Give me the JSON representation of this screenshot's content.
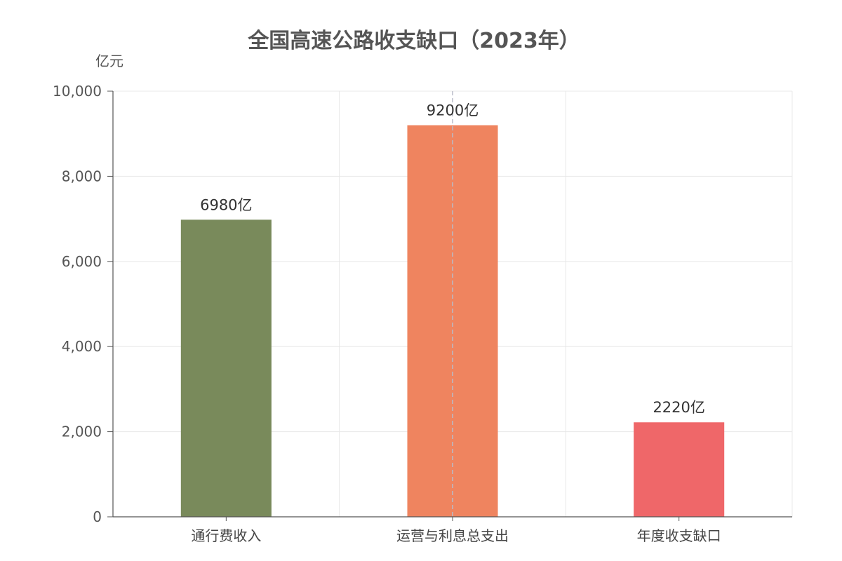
{
  "chart_data": {
    "type": "bar",
    "title": "全国高速公路收支缺口（2023年）",
    "unit_label": "亿元",
    "categories": [
      "通行费收入",
      "运营与利息总支出",
      "年度收支缺口"
    ],
    "values": [
      6980,
      9200,
      2220
    ],
    "data_labels": [
      "6980亿",
      "9200亿",
      "2220亿"
    ],
    "bar_colors": [
      "#798a5b",
      "#ef845f",
      "#ef6769"
    ],
    "ylim": [
      0,
      10000
    ],
    "yticks": [
      0,
      2000,
      4000,
      6000,
      8000,
      10000
    ],
    "ytick_labels": [
      "0",
      "2,000",
      "4,000",
      "6,000",
      "8,000",
      "10,000"
    ],
    "grid": true,
    "legend": "none"
  }
}
